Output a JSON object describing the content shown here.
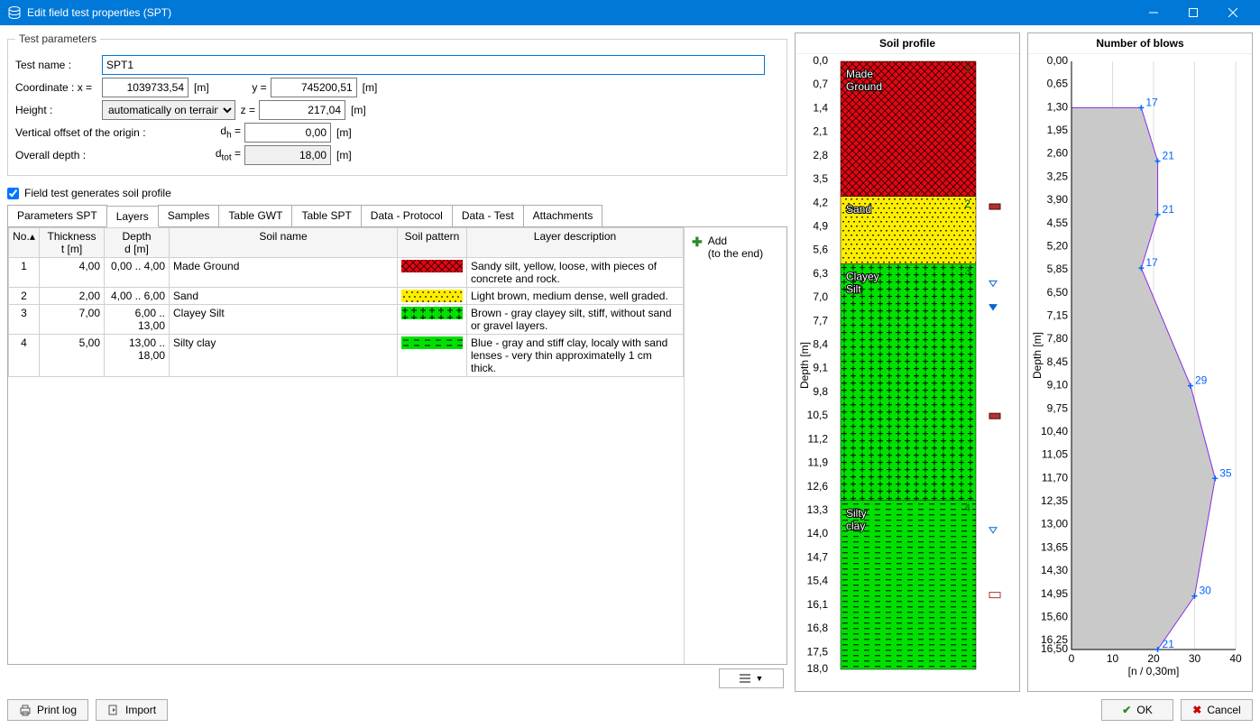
{
  "window": {
    "title": "Edit field test properties (SPT)"
  },
  "fieldset": {
    "legend": "Test parameters"
  },
  "form": {
    "testname_lbl": "Test name :",
    "testname": "SPT1",
    "coord_lbl": "Coordinate : x =",
    "x": "1039733,54",
    "y_lbl": "y =",
    "y": "745200,51",
    "height_lbl": "Height :",
    "height_mode": "automatically on terrain",
    "z_lbl": "z =",
    "z": "217,04",
    "voffset_lbl": "Vertical offset of the origin :",
    "dh_lbl": "d",
    "dh_sub": "h",
    "dh": "0,00",
    "depth_lbl": "Overall depth :",
    "dtot_lbl": "d",
    "dtot_sub": "tot",
    "dtot": "18,00",
    "unit_m": "[m]",
    "chk_lbl": "Field test generates soil profile",
    "chk": true
  },
  "tabs": [
    "Parameters SPT",
    "Layers",
    "Samples",
    "Table GWT",
    "Table SPT",
    "Data - Protocol",
    "Data - Test",
    "Attachments"
  ],
  "active_tab": 1,
  "table": {
    "headers": {
      "no": "No.",
      "thick": "Thickness\nt [m]",
      "depth": "Depth\nd [m]",
      "soil": "Soil name",
      "pattern": "Soil pattern",
      "desc": "Layer description"
    },
    "rows": [
      {
        "no": "1",
        "thick": "4,00",
        "depth": "0,00 .. 4,00",
        "soil": "Made Ground",
        "pattern": "made",
        "desc": "Sandy silt, yellow, loose, with pieces of concrete and rock."
      },
      {
        "no": "2",
        "thick": "2,00",
        "depth": "4,00 .. 6,00",
        "soil": "Sand",
        "pattern": "sand",
        "desc": "Light brown, medium dense, well graded."
      },
      {
        "no": "3",
        "thick": "7,00",
        "depth": "6,00 .. 13,00",
        "soil": "Clayey Silt",
        "pattern": "clayeysilt",
        "desc": "Brown - gray clayey silt, stiff, without sand or gravel layers."
      },
      {
        "no": "4",
        "thick": "5,00",
        "depth": "13,00 .. 18,00",
        "soil": "Silty clay",
        "pattern": "siltyclay",
        "desc": "Blue - gray and stiff clay, localy with sand lenses - very thin approximatelly 1 cm thick."
      }
    ]
  },
  "sidebtn": {
    "add": "Add",
    "add2": "(to the end)"
  },
  "soil_profile": {
    "title": "Soil profile",
    "depth_axis_label": "Depth [m]",
    "ticks": [
      "0,0",
      "0,7",
      "1,4",
      "2,1",
      "2,8",
      "3,5",
      "4,2",
      "4,9",
      "5,6",
      "6,3",
      "7,0",
      "7,7",
      "8,4",
      "9,1",
      "9,8",
      "10,5",
      "11,2",
      "11,9",
      "12,6",
      "13,3",
      "14,0",
      "14,7",
      "15,4",
      "16,1",
      "16,8",
      "17,5",
      "18,0"
    ],
    "layers": [
      {
        "from": 0,
        "to": 4,
        "label": "Made Ground",
        "color": "#e30613",
        "pattern": "crosshatch",
        "num": "1"
      },
      {
        "from": 4,
        "to": 6,
        "label": "Sand",
        "color": "#ffed00",
        "pattern": "dots",
        "num": "2"
      },
      {
        "from": 6,
        "to": 13,
        "label": "Clayey Silt",
        "color": "#00e000",
        "pattern": "pluses",
        "num": "3"
      },
      {
        "from": 13,
        "to": 18,
        "label": "Silty clay",
        "color": "#00e000",
        "pattern": "dashes",
        "num": "4"
      }
    ],
    "markers": [
      {
        "depth": 4.3,
        "type": "sample"
      },
      {
        "depth": 6.5,
        "type": "gwt"
      },
      {
        "depth": 7.2,
        "type": "gwt-fill"
      },
      {
        "depth": 10.5,
        "type": "sample"
      },
      {
        "depth": 13.8,
        "type": "gwt"
      },
      {
        "depth": 15.8,
        "type": "sample-box"
      }
    ]
  },
  "blows": {
    "title": "Number of blows",
    "depth_axis_label": "Depth [m]",
    "x_label": "[n / 0,30m]",
    "yticks": [
      "0,00",
      "0,65",
      "1,30",
      "1,95",
      "2,60",
      "3,25",
      "3,90",
      "4,55",
      "5,20",
      "5,85",
      "6,50",
      "7,15",
      "7,80",
      "8,45",
      "9,10",
      "9,75",
      "10,40",
      "11,05",
      "11,70",
      "12,35",
      "13,00",
      "13,65",
      "14,30",
      "14,95",
      "15,60",
      "16,25",
      "16,50"
    ],
    "xticks": [
      "0",
      "10",
      "20",
      "30",
      "40"
    ],
    "xmax": 40,
    "ymax": 16.5,
    "points": [
      {
        "d": 1.3,
        "n": 17
      },
      {
        "d": 2.8,
        "n": 21
      },
      {
        "d": 4.3,
        "n": 21
      },
      {
        "d": 5.8,
        "n": 17
      },
      {
        "d": 9.1,
        "n": 29
      },
      {
        "d": 11.7,
        "n": 35
      },
      {
        "d": 15.0,
        "n": 30
      },
      {
        "d": 16.5,
        "n": 21
      }
    ],
    "fill": "#c9c9c9",
    "line": "#8a2be2",
    "marker": "#0066ff"
  },
  "footer": {
    "print": "Print log",
    "import": "Import",
    "ok": "OK",
    "cancel": "Cancel"
  }
}
